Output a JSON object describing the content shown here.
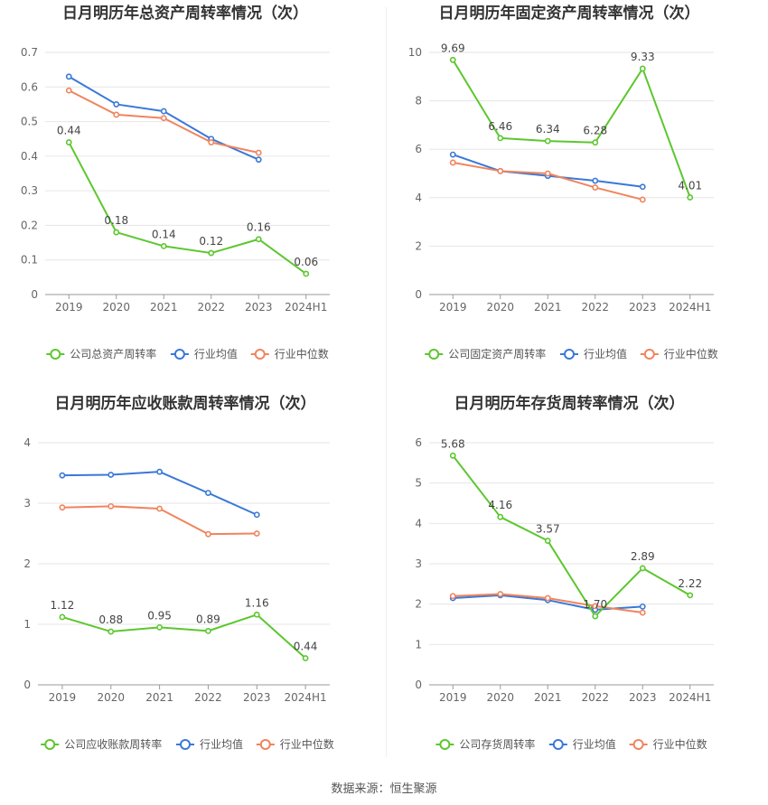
{
  "source": "数据来源：恒生聚源",
  "colors": {
    "company": "#5cc72e",
    "avg": "#3a78d8",
    "median": "#f0845d",
    "grid": "#e6e6e6",
    "axis": "#999999",
    "text": "#666666"
  },
  "legend_labels": {
    "avg": "行业均值",
    "median": "行业中位数"
  },
  "chart_data": [
    {
      "type": "line",
      "title": "日月明历年总资产周转率情况（次）",
      "categories": [
        "2019",
        "2020",
        "2021",
        "2022",
        "2023",
        "2024H1"
      ],
      "ylim": [
        0,
        0.7
      ],
      "yticks": [
        "0",
        "0.1",
        "0.2",
        "0.3",
        "0.4",
        "0.5",
        "0.6",
        "0.7"
      ],
      "grid": true,
      "legend_position": "bottom",
      "series": [
        {
          "name": "公司总资产周转率",
          "key": "company",
          "values": [
            0.44,
            0.18,
            0.14,
            0.12,
            0.16,
            0.06
          ],
          "labels": [
            "0.44",
            "0.18",
            "0.14",
            "0.12",
            "0.16",
            "0.06"
          ]
        },
        {
          "name": "行业均值",
          "key": "avg",
          "values": [
            0.63,
            0.55,
            0.53,
            0.45,
            0.39,
            null
          ]
        },
        {
          "name": "行业中位数",
          "key": "median",
          "values": [
            0.59,
            0.52,
            0.51,
            0.44,
            0.41,
            null
          ]
        }
      ]
    },
    {
      "type": "line",
      "title": "日月明历年固定资产周转率情况（次）",
      "categories": [
        "2019",
        "2020",
        "2021",
        "2022",
        "2023",
        "2024H1"
      ],
      "ylim": [
        0,
        10
      ],
      "yticks": [
        "0",
        "2",
        "4",
        "6",
        "8",
        "10"
      ],
      "grid": true,
      "legend_position": "bottom",
      "series": [
        {
          "name": "公司固定资产周转率",
          "key": "company",
          "values": [
            9.69,
            6.46,
            6.34,
            6.28,
            9.33,
            4.01
          ],
          "labels": [
            "9.69",
            "6.46",
            "6.34",
            "6.28",
            "9.33",
            "4.01"
          ]
        },
        {
          "name": "行业均值",
          "key": "avg",
          "values": [
            5.78,
            5.1,
            4.9,
            4.7,
            4.45,
            null
          ]
        },
        {
          "name": "行业中位数",
          "key": "median",
          "values": [
            5.45,
            5.1,
            5.0,
            4.42,
            3.92,
            null
          ]
        }
      ]
    },
    {
      "type": "line",
      "title": "日月明历年应收账款周转率情况（次）",
      "categories": [
        "2019",
        "2020",
        "2021",
        "2022",
        "2023",
        "2024H1"
      ],
      "ylim": [
        0,
        4
      ],
      "yticks": [
        "0",
        "1",
        "2",
        "3",
        "4"
      ],
      "grid": true,
      "legend_position": "bottom",
      "series": [
        {
          "name": "公司应收账款周转率",
          "key": "company",
          "values": [
            1.12,
            0.88,
            0.95,
            0.89,
            1.16,
            0.44
          ],
          "labels": [
            "1.12",
            "0.88",
            "0.95",
            "0.89",
            "1.16",
            "0.44"
          ]
        },
        {
          "name": "行业均值",
          "key": "avg",
          "values": [
            3.46,
            3.47,
            3.52,
            3.17,
            2.81,
            null
          ]
        },
        {
          "name": "行业中位数",
          "key": "median",
          "values": [
            2.93,
            2.95,
            2.91,
            2.49,
            2.5,
            null
          ]
        }
      ]
    },
    {
      "type": "line",
      "title": "日月明历年存货周转率情况（次）",
      "categories": [
        "2019",
        "2020",
        "2021",
        "2022",
        "2023",
        "2024H1"
      ],
      "ylim": [
        0,
        6
      ],
      "yticks": [
        "0",
        "1",
        "2",
        "3",
        "4",
        "5",
        "6"
      ],
      "grid": true,
      "legend_position": "bottom",
      "series": [
        {
          "name": "公司存货周转率",
          "key": "company",
          "values": [
            5.68,
            4.16,
            3.57,
            1.7,
            2.89,
            2.22
          ],
          "labels": [
            "5.68",
            "4.16",
            "3.57",
            "1.70",
            "2.89",
            "2.22"
          ]
        },
        {
          "name": "行业均值",
          "key": "avg",
          "values": [
            2.15,
            2.22,
            2.1,
            1.86,
            1.94,
            null
          ]
        },
        {
          "name": "行业中位数",
          "key": "median",
          "values": [
            2.2,
            2.25,
            2.15,
            1.95,
            1.79,
            null
          ]
        }
      ]
    }
  ]
}
